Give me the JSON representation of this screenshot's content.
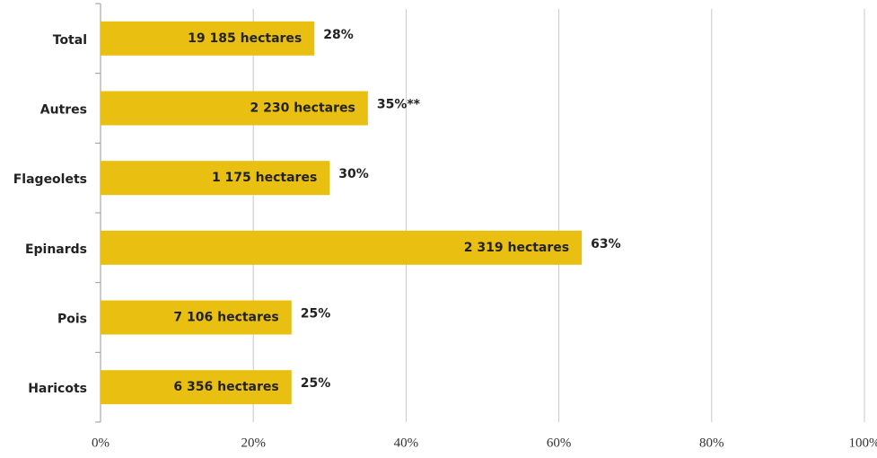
{
  "chart_data": {
    "type": "bar",
    "orientation": "horizontal",
    "categories": [
      "Total",
      "Autres",
      "Flageolets",
      "Epinards",
      "Pois",
      "Haricots"
    ],
    "values": [
      28,
      35,
      30,
      63,
      25,
      25
    ],
    "value_labels": [
      "28%",
      "35%**",
      "30%",
      "63%",
      "25%",
      "25%"
    ],
    "bar_labels": [
      "19 185 hectares",
      "2 230 hectares",
      "1 175 hectares",
      "2 319 hectares",
      "7 106 hectares",
      "6 356 hectares"
    ],
    "color": "#e9bf12",
    "xlim": [
      0,
      100
    ],
    "xticks": [
      {
        "value": 0,
        "label": "0%"
      },
      {
        "value": 20,
        "label": "20%"
      },
      {
        "value": 40,
        "label": "40%"
      },
      {
        "value": 60,
        "label": "60%"
      },
      {
        "value": 80,
        "label": "80%"
      },
      {
        "value": 100,
        "label": "100%"
      }
    ],
    "grid": true
  }
}
